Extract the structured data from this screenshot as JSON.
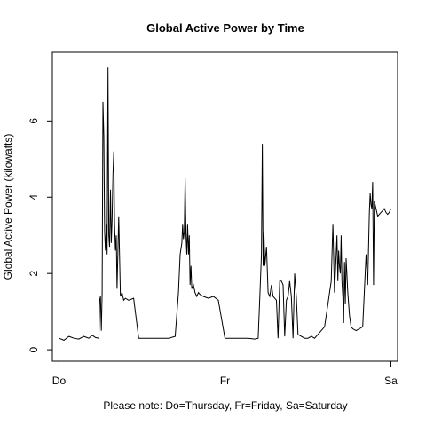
{
  "chart_data": {
    "type": "line",
    "title": "Global Active Power by Time",
    "xlabel": "",
    "ylabel": "Global Active Power (kilowatts)",
    "note": "Please note: Do=Thursday, Fr=Friday, Sa=Saturday",
    "x_ticks": [
      {
        "label": "Do",
        "day": 0
      },
      {
        "label": "Fr",
        "day": 1
      },
      {
        "label": "Sa",
        "day": 2
      }
    ],
    "y_ticks": [
      0,
      2,
      4,
      6
    ],
    "xlim": [
      -0.04,
      2.04
    ],
    "ylim": [
      -0.3,
      7.8
    ],
    "grid": false,
    "series": [
      {
        "name": "",
        "color": "#000000",
        "x": [
          0.0,
          0.03,
          0.06,
          0.09,
          0.12,
          0.15,
          0.18,
          0.2,
          0.22,
          0.24,
          0.245,
          0.25,
          0.255,
          0.26,
          0.265,
          0.27,
          0.275,
          0.28,
          0.285,
          0.29,
          0.295,
          0.3,
          0.305,
          0.31,
          0.315,
          0.32,
          0.325,
          0.33,
          0.335,
          0.34,
          0.345,
          0.35,
          0.36,
          0.37,
          0.38,
          0.39,
          0.4,
          0.42,
          0.45,
          0.48,
          0.51,
          0.54,
          0.58,
          0.62,
          0.66,
          0.7,
          0.72,
          0.73,
          0.74,
          0.745,
          0.75,
          0.755,
          0.76,
          0.765,
          0.77,
          0.775,
          0.78,
          0.785,
          0.79,
          0.795,
          0.8,
          0.81,
          0.82,
          0.83,
          0.84,
          0.85,
          0.87,
          0.9,
          0.93,
          0.96,
          1.0,
          1.03,
          1.06,
          1.1,
          1.14,
          1.18,
          1.2,
          1.21,
          1.22,
          1.225,
          1.23,
          1.235,
          1.24,
          1.25,
          1.26,
          1.27,
          1.28,
          1.29,
          1.3,
          1.31,
          1.32,
          1.33,
          1.34,
          1.35,
          1.36,
          1.37,
          1.38,
          1.39,
          1.4,
          1.41,
          1.42,
          1.43,
          1.44,
          1.46,
          1.48,
          1.5,
          1.52,
          1.54,
          1.56,
          1.58,
          1.6,
          1.62,
          1.64,
          1.65,
          1.66,
          1.67,
          1.675,
          1.68,
          1.685,
          1.69,
          1.695,
          1.7,
          1.705,
          1.71,
          1.715,
          1.72,
          1.725,
          1.73,
          1.74,
          1.75,
          1.76,
          1.77,
          1.79,
          1.81,
          1.83,
          1.85,
          1.86,
          1.87,
          1.875,
          1.88,
          1.885,
          1.89,
          1.895,
          1.9,
          1.91,
          1.92,
          1.93,
          1.94,
          1.95,
          1.96,
          1.97,
          1.98,
          1.99,
          2.0
        ],
        "y": [
          0.3,
          0.25,
          0.35,
          0.3,
          0.28,
          0.35,
          0.3,
          0.38,
          0.32,
          0.3,
          1.3,
          1.4,
          0.5,
          1.5,
          6.5,
          5.6,
          3.1,
          2.6,
          3.3,
          2.5,
          7.4,
          3.0,
          2.7,
          4.2,
          2.8,
          3.4,
          4.6,
          5.2,
          3.3,
          2.6,
          3.0,
          1.6,
          3.5,
          1.4,
          1.5,
          1.3,
          1.35,
          1.3,
          1.35,
          0.3,
          0.3,
          0.3,
          0.3,
          0.3,
          0.3,
          0.35,
          1.5,
          2.5,
          2.8,
          3.3,
          2.9,
          3.1,
          4.5,
          3.0,
          2.5,
          3.3,
          2.5,
          3.0,
          1.7,
          2.2,
          1.6,
          1.7,
          1.5,
          1.4,
          1.5,
          1.45,
          1.4,
          1.35,
          1.4,
          1.3,
          0.3,
          0.3,
          0.3,
          0.3,
          0.3,
          0.28,
          0.3,
          1.4,
          2.5,
          5.4,
          2.2,
          3.1,
          2.2,
          2.7,
          1.5,
          1.4,
          1.7,
          1.4,
          1.35,
          1.3,
          0.3,
          1.8,
          1.8,
          1.7,
          0.35,
          1.3,
          1.4,
          1.8,
          1.4,
          0.3,
          2.0,
          1.4,
          0.4,
          0.35,
          0.3,
          0.3,
          0.35,
          0.3,
          0.4,
          0.5,
          0.6,
          1.2,
          1.8,
          3.3,
          1.5,
          2.5,
          3.0,
          1.8,
          2.6,
          2.2,
          2.0,
          3.0,
          1.8,
          1.4,
          0.7,
          2.3,
          1.2,
          2.4,
          1.5,
          0.9,
          0.6,
          0.55,
          0.5,
          0.55,
          0.6,
          2.5,
          1.7,
          3.6,
          4.1,
          3.8,
          3.7,
          4.4,
          1.7,
          3.9,
          3.7,
          3.5,
          3.55,
          3.6,
          3.65,
          3.7,
          3.6,
          3.55,
          3.6,
          3.7
        ]
      }
    ]
  }
}
